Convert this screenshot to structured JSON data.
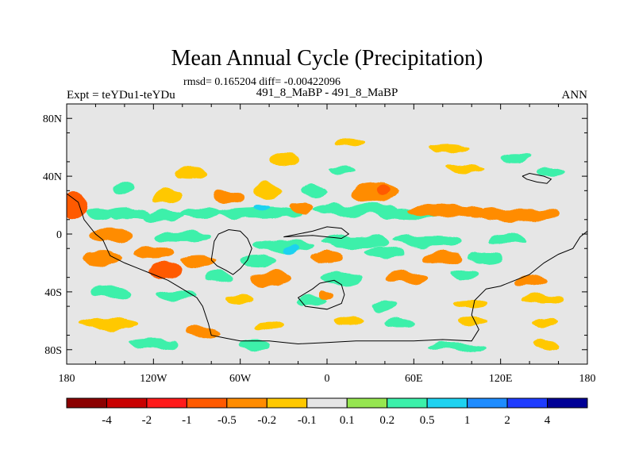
{
  "chart_data": {
    "type": "heatmap",
    "title": "Mean Annual Cycle (Precipitation)",
    "subtitle": "rmsd= 0.165204 diff= -0.00422096",
    "left_label": "Expt = teYDu1-teYDu",
    "center_label": "491_8_MaBP - 491_8_MaBP",
    "right_label": "ANN",
    "xlim": [
      -180,
      180
    ],
    "ylim": [
      -90,
      90
    ],
    "x_ticks": [
      {
        "value": -180,
        "label": "180"
      },
      {
        "value": -120,
        "label": "120W"
      },
      {
        "value": -60,
        "label": "60W"
      },
      {
        "value": 0,
        "label": "0"
      },
      {
        "value": 60,
        "label": "60E"
      },
      {
        "value": 120,
        "label": "120E"
      },
      {
        "value": 180,
        "label": "180"
      }
    ],
    "y_ticks": [
      {
        "value": 80,
        "label": "80N"
      },
      {
        "value": 40,
        "label": "40N"
      },
      {
        "value": 0,
        "label": "0"
      },
      {
        "value": -40,
        "label": "40S"
      },
      {
        "value": -80,
        "label": "80S"
      }
    ],
    "colorbar": {
      "colors": [
        "#8b0000",
        "#c80000",
        "#ff1a1a",
        "#ff5a00",
        "#ff8c00",
        "#ffc800",
        "#e6e6e6",
        "#96e650",
        "#3cf0aa",
        "#1ed2f0",
        "#1e8cff",
        "#1e3cff",
        "#000096"
      ],
      "labels": [
        "-4",
        "-2",
        "-1",
        "-0.5",
        "-0.2",
        "-0.1",
        "0.1",
        "0.2",
        "0.5",
        "1",
        "2",
        "4"
      ]
    },
    "fields": [
      {
        "lon": -174,
        "lat": 20,
        "rx": 8,
        "ry": 10,
        "v": -0.8
      },
      {
        "lon": -158,
        "lat": 13,
        "rx": 10,
        "ry": 4,
        "v": 0.3
      },
      {
        "lon": -138,
        "lat": 14,
        "rx": 16,
        "ry": 4,
        "v": 0.35
      },
      {
        "lon": -113,
        "lat": 12,
        "rx": 14,
        "ry": 4,
        "v": 0.3
      },
      {
        "lon": -88,
        "lat": 14,
        "rx": 14,
        "ry": 4,
        "v": 0.3
      },
      {
        "lon": -48,
        "lat": 14,
        "rx": 30,
        "ry": 4,
        "v": 0.3
      },
      {
        "lon": -45,
        "lat": 18,
        "rx": 5,
        "ry": 2.5,
        "v": 0.8
      },
      {
        "lon": 20,
        "lat": 17,
        "rx": 30,
        "ry": 4,
        "v": 0.3
      },
      {
        "lon": 60,
        "lat": 14,
        "rx": 25,
        "ry": 4,
        "v": 0.3
      },
      {
        "lon": 33,
        "lat": 29,
        "rx": 16,
        "ry": 7,
        "v": -0.4
      },
      {
        "lon": 38,
        "lat": 30,
        "rx": 6,
        "ry": 4,
        "v": -0.8
      },
      {
        "lon": 82,
        "lat": 16,
        "rx": 26,
        "ry": 5,
        "v": -0.4
      },
      {
        "lon": 130,
        "lat": 13,
        "rx": 30,
        "ry": 5,
        "v": -0.4
      },
      {
        "lon": -18,
        "lat": 18,
        "rx": 8,
        "ry": 4,
        "v": -0.4
      },
      {
        "lon": -68,
        "lat": 26,
        "rx": 10,
        "ry": 5,
        "v": -0.3
      },
      {
        "lon": -40,
        "lat": 30,
        "rx": 9,
        "ry": 5,
        "v": -0.15
      },
      {
        "lon": -8,
        "lat": 30,
        "rx": 10,
        "ry": 4,
        "v": 0.3
      },
      {
        "lon": -110,
        "lat": 26,
        "rx": 10,
        "ry": 5,
        "v": -0.15
      },
      {
        "lon": -140,
        "lat": 32,
        "rx": 8,
        "ry": 4,
        "v": 0.3
      },
      {
        "lon": -95,
        "lat": 42,
        "rx": 12,
        "ry": 4,
        "v": -0.15
      },
      {
        "lon": 10,
        "lat": 44,
        "rx": 10,
        "ry": 3,
        "v": 0.3
      },
      {
        "lon": 95,
        "lat": 45,
        "rx": 14,
        "ry": 3,
        "v": -0.15
      },
      {
        "lon": 155,
        "lat": 44,
        "rx": 9,
        "ry": 3,
        "v": 0.3
      },
      {
        "lon": -30,
        "lat": 52,
        "rx": 10,
        "ry": 4,
        "v": -0.15
      },
      {
        "lon": 15,
        "lat": 62,
        "rx": 10,
        "ry": 3,
        "v": -0.15
      },
      {
        "lon": 85,
        "lat": 60,
        "rx": 14,
        "ry": 3,
        "v": -0.15
      },
      {
        "lon": 130,
        "lat": 52,
        "rx": 10,
        "ry": 3,
        "v": 0.3
      },
      {
        "lon": -150,
        "lat": -1,
        "rx": 14,
        "ry": 5,
        "v": -0.3
      },
      {
        "lon": -100,
        "lat": -2,
        "rx": 20,
        "ry": 4,
        "v": 0.3
      },
      {
        "lon": -30,
        "lat": -8,
        "rx": 22,
        "ry": 4,
        "v": 0.3
      },
      {
        "lon": -25,
        "lat": -10,
        "rx": 5,
        "ry": 2.5,
        "v": 0.8
      },
      {
        "lon": 20,
        "lat": -6,
        "rx": 25,
        "ry": 4,
        "v": 0.3
      },
      {
        "lon": 70,
        "lat": -5,
        "rx": 22,
        "ry": 4,
        "v": 0.3
      },
      {
        "lon": 125,
        "lat": -3,
        "rx": 14,
        "ry": 4,
        "v": 0.3
      },
      {
        "lon": -155,
        "lat": -16,
        "rx": 14,
        "ry": 5,
        "v": -0.4
      },
      {
        "lon": -120,
        "lat": -13,
        "rx": 14,
        "ry": 4,
        "v": -0.4
      },
      {
        "lon": -88,
        "lat": -18,
        "rx": 12,
        "ry": 4,
        "v": -0.4
      },
      {
        "lon": -48,
        "lat": -18,
        "rx": 12,
        "ry": 4,
        "v": 0.3
      },
      {
        "lon": 0,
        "lat": -16,
        "rx": 12,
        "ry": 4,
        "v": -0.4
      },
      {
        "lon": 40,
        "lat": -13,
        "rx": 14,
        "ry": 4,
        "v": 0.3
      },
      {
        "lon": 80,
        "lat": -16,
        "rx": 14,
        "ry": 4,
        "v": -0.3
      },
      {
        "lon": 110,
        "lat": -16,
        "rx": 12,
        "ry": 4,
        "v": 0.3
      },
      {
        "lon": -112,
        "lat": -25,
        "rx": 12,
        "ry": 6,
        "v": -0.6
      },
      {
        "lon": -75,
        "lat": -30,
        "rx": 10,
        "ry": 4,
        "v": 0.3
      },
      {
        "lon": -40,
        "lat": -30,
        "rx": 14,
        "ry": 5,
        "v": -0.3
      },
      {
        "lon": 10,
        "lat": -30,
        "rx": 14,
        "ry": 4,
        "v": 0.3
      },
      {
        "lon": 55,
        "lat": -30,
        "rx": 14,
        "ry": 4,
        "v": -0.4
      },
      {
        "lon": 95,
        "lat": -28,
        "rx": 10,
        "ry": 4,
        "v": 0.3
      },
      {
        "lon": 140,
        "lat": -32,
        "rx": 12,
        "ry": 4,
        "v": -0.3
      },
      {
        "lon": -150,
        "lat": -40,
        "rx": 14,
        "ry": 4,
        "v": 0.3
      },
      {
        "lon": -105,
        "lat": -42,
        "rx": 14,
        "ry": 3,
        "v": 0.3
      },
      {
        "lon": -60,
        "lat": -46,
        "rx": 10,
        "ry": 4,
        "v": -0.15
      },
      {
        "lon": -10,
        "lat": -46,
        "rx": 10,
        "ry": 3,
        "v": 0.3
      },
      {
        "lon": 40,
        "lat": -50,
        "rx": 10,
        "ry": 3,
        "v": 0.3
      },
      {
        "lon": 100,
        "lat": -48,
        "rx": 12,
        "ry": 3,
        "v": -0.15
      },
      {
        "lon": 150,
        "lat": -45,
        "rx": 14,
        "ry": 3,
        "v": -0.15
      },
      {
        "lon": 0,
        "lat": -42,
        "rx": 5,
        "ry": 3,
        "v": -0.4
      },
      {
        "lon": -150,
        "lat": -62,
        "rx": 20,
        "ry": 4,
        "v": -0.15
      },
      {
        "lon": -85,
        "lat": -68,
        "rx": 12,
        "ry": 4,
        "v": -0.3
      },
      {
        "lon": -40,
        "lat": -64,
        "rx": 10,
        "ry": 3,
        "v": -0.15
      },
      {
        "lon": 15,
        "lat": -60,
        "rx": 10,
        "ry": 3,
        "v": -0.15
      },
      {
        "lon": 50,
        "lat": -62,
        "rx": 10,
        "ry": 3,
        "v": 0.3
      },
      {
        "lon": 100,
        "lat": -60,
        "rx": 10,
        "ry": 3,
        "v": -0.15
      },
      {
        "lon": 150,
        "lat": -62,
        "rx": 10,
        "ry": 3,
        "v": -0.15
      },
      {
        "lon": -120,
        "lat": -75,
        "rx": 16,
        "ry": 3,
        "v": 0.3
      },
      {
        "lon": -50,
        "lat": -76,
        "rx": 10,
        "ry": 3,
        "v": 0.3
      },
      {
        "lon": 90,
        "lat": -78,
        "rx": 20,
        "ry": 3,
        "v": 0.3
      },
      {
        "lon": 150,
        "lat": -76,
        "rx": 8,
        "ry": 3,
        "v": -0.15
      }
    ],
    "coastlines": [
      [
        [
          -180,
          28
        ],
        [
          -172,
          22
        ],
        [
          -168,
          10
        ],
        [
          -160,
          0
        ],
        [
          -155,
          -4
        ],
        [
          -150,
          -15
        ],
        [
          -140,
          -20
        ],
        [
          -130,
          -24
        ],
        [
          -120,
          -28
        ],
        [
          -110,
          -32
        ],
        [
          -100,
          -38
        ],
        [
          -90,
          -44
        ],
        [
          -86,
          -50
        ],
        [
          -82,
          -62
        ],
        [
          -80,
          -70
        ],
        [
          -70,
          -72
        ],
        [
          -60,
          -74
        ],
        [
          -40,
          -74
        ],
        [
          -20,
          -76
        ],
        [
          0,
          -75
        ],
        [
          20,
          -74
        ],
        [
          40,
          -74
        ],
        [
          60,
          -74
        ],
        [
          80,
          -73
        ],
        [
          100,
          -74
        ],
        [
          105,
          -66
        ],
        [
          100,
          -56
        ],
        [
          102,
          -46
        ],
        [
          110,
          -38
        ],
        [
          120,
          -36
        ],
        [
          130,
          -32
        ],
        [
          140,
          -28
        ],
        [
          150,
          -20
        ],
        [
          160,
          -14
        ],
        [
          170,
          -10
        ],
        [
          175,
          -2
        ],
        [
          180,
          2
        ]
      ],
      [
        [
          -80,
          -18
        ],
        [
          -78,
          -5
        ],
        [
          -75,
          0
        ],
        [
          -68,
          3
        ],
        [
          -60,
          2
        ],
        [
          -55,
          -3
        ],
        [
          -52,
          -10
        ],
        [
          -55,
          -18
        ],
        [
          -60,
          -24
        ],
        [
          -65,
          -28
        ],
        [
          -70,
          -25
        ],
        [
          -76,
          -22
        ],
        [
          -80,
          -18
        ]
      ],
      [
        [
          -30,
          -2
        ],
        [
          -20,
          0
        ],
        [
          -10,
          2
        ],
        [
          0,
          5
        ],
        [
          10,
          4
        ],
        [
          15,
          0
        ],
        [
          10,
          -3
        ],
        [
          0,
          -2
        ],
        [
          -10,
          -1
        ],
        [
          -30,
          -2
        ]
      ],
      [
        [
          -5,
          -34
        ],
        [
          5,
          -32
        ],
        [
          10,
          -35
        ],
        [
          12,
          -42
        ],
        [
          10,
          -48
        ],
        [
          0,
          -52
        ],
        [
          -15,
          -50
        ],
        [
          -20,
          -44
        ],
        [
          -10,
          -38
        ],
        [
          -5,
          -34
        ]
      ],
      [
        [
          135,
          40
        ],
        [
          140,
          42
        ],
        [
          150,
          40
        ],
        [
          155,
          38
        ],
        [
          152,
          35
        ],
        [
          145,
          36
        ],
        [
          138,
          38
        ],
        [
          135,
          40
        ]
      ]
    ]
  }
}
